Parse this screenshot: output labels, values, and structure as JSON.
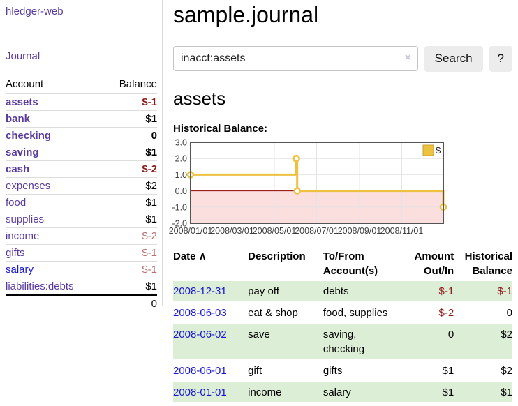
{
  "app": {
    "brand": "hledger-web",
    "nav": {
      "journal": "Journal"
    }
  },
  "sidebar": {
    "headers": {
      "account": "Account",
      "balance": "Balance"
    },
    "accounts": [
      {
        "name": "assets",
        "depth": 1,
        "bold": true,
        "link_color": "purple",
        "balance": "$-1",
        "balance_class": "neg-strong"
      },
      {
        "name": "bank",
        "depth": 2,
        "bold": true,
        "link_color": "purple",
        "balance": "$1",
        "balance_class": ""
      },
      {
        "name": "checking",
        "depth": 3,
        "bold": true,
        "link_color": "purple",
        "balance": "0",
        "balance_class": ""
      },
      {
        "name": "saving",
        "depth": 3,
        "bold": true,
        "link_color": "purple",
        "balance": "$1",
        "balance_class": ""
      },
      {
        "name": "cash",
        "depth": 2,
        "bold": true,
        "link_color": "purple",
        "balance": "$-2",
        "balance_class": "neg-strong"
      },
      {
        "name": "expenses",
        "depth": 1,
        "bold": false,
        "link_color": "purple",
        "balance": "$2",
        "balance_class": ""
      },
      {
        "name": "food",
        "depth": 2,
        "bold": false,
        "link_color": "purple",
        "balance": "$1",
        "balance_class": ""
      },
      {
        "name": "supplies",
        "depth": 2,
        "bold": false,
        "link_color": "purple",
        "balance": "$1",
        "balance_class": ""
      },
      {
        "name": "income",
        "depth": 1,
        "bold": false,
        "link_color": "purple",
        "balance": "$-2",
        "balance_class": "neg-soft"
      },
      {
        "name": "gifts",
        "depth": 2,
        "bold": false,
        "link_color": "purple",
        "balance": "$-1",
        "balance_class": "neg-soft"
      },
      {
        "name": "salary",
        "depth": 2,
        "bold": false,
        "link_color": "blue",
        "balance": "$-1",
        "balance_class": "neg-soft"
      },
      {
        "name": "liabilities:debts",
        "depth": 1,
        "bold": false,
        "link_color": "purple",
        "balance": "$1",
        "balance_class": ""
      }
    ],
    "total": "0"
  },
  "main": {
    "title": "sample.journal",
    "search": {
      "value": "inacct:assets",
      "clear_icon": "×",
      "button_label": "Search",
      "help_label": "?"
    },
    "account_heading": "assets",
    "chart_label": "Historical Balance:"
  },
  "chart_data": {
    "type": "line",
    "title": "Historical Balance",
    "step": true,
    "series": [
      {
        "name": "$",
        "color": "#edc240",
        "points": [
          [
            "2008-01-01",
            1
          ],
          [
            "2008-06-01",
            2
          ],
          [
            "2008-06-02",
            2
          ],
          [
            "2008-06-03",
            0
          ],
          [
            "2008-12-31",
            -1
          ]
        ]
      }
    ],
    "xrange": [
      "2008-01-01",
      "2008-12-31"
    ],
    "ylim": [
      -2,
      3
    ],
    "yticks": [
      "3.0",
      "2.0",
      "1.0",
      "0.0",
      "-1.0",
      "-2.0"
    ],
    "xticks": [
      "2008/01/01",
      "2008/03/01",
      "2008/05/01",
      "2008/07/01",
      "2008/09/01",
      "2008/11/01"
    ],
    "grid": true,
    "legend_position": "top-right",
    "colors": {
      "grid": "#e4e4e4",
      "border": "#545454",
      "zero_line": "#8e0000",
      "negative_region_fill": "#fbdfdf",
      "tick_text": "#3d3d3d"
    }
  },
  "register": {
    "headers": {
      "date": "Date",
      "sort_icon": "∧",
      "description": "Description",
      "accounts": "To/From Account(s)",
      "amount": "Amount Out/In",
      "balance": "Historical Balance"
    },
    "rows": [
      {
        "date": "2008-12-31",
        "description": "pay off",
        "accounts": "debts",
        "amount": "$-1",
        "amount_class": "neg-strong",
        "balance": "$-1",
        "balance_class": "neg-strong"
      },
      {
        "date": "2008-06-03",
        "description": "eat & shop",
        "accounts": "food, supplies",
        "amount": "$-2",
        "amount_class": "neg-strong",
        "balance": "0",
        "balance_class": ""
      },
      {
        "date": "2008-06-02",
        "description": "save",
        "accounts": "saving, checking",
        "amount": "0",
        "amount_class": "",
        "balance": "$2",
        "balance_class": ""
      },
      {
        "date": "2008-06-01",
        "description": "gift",
        "accounts": "gifts",
        "amount": "$1",
        "amount_class": "",
        "balance": "$2",
        "balance_class": ""
      },
      {
        "date": "2008-01-01",
        "description": "income",
        "accounts": "salary",
        "amount": "$1",
        "amount_class": "",
        "balance": "$1",
        "balance_class": ""
      }
    ]
  }
}
